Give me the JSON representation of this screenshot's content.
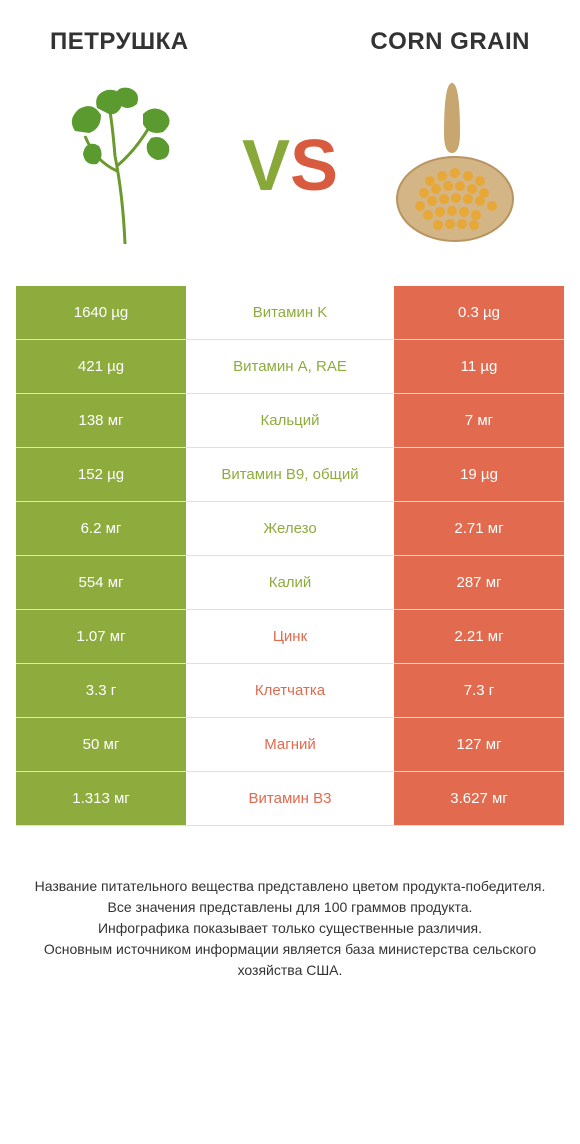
{
  "left_title": "ПЕТРУШКА",
  "right_title": "CORN GRAIN",
  "vs_v": "V",
  "vs_s": "S",
  "colors": {
    "green": "#8eac3e",
    "orange": "#e16a4f"
  },
  "rows": [
    {
      "left": "1640 µg",
      "label": "Витамин K",
      "right": "0.3 µg",
      "winner": "left"
    },
    {
      "left": "421 µg",
      "label": "Витамин A, RAE",
      "right": "11 µg",
      "winner": "left"
    },
    {
      "left": "138 мг",
      "label": "Кальций",
      "right": "7 мг",
      "winner": "left"
    },
    {
      "left": "152 µg",
      "label": "Витамин B9, общий",
      "right": "19 µg",
      "winner": "left"
    },
    {
      "left": "6.2 мг",
      "label": "Железо",
      "right": "2.71 мг",
      "winner": "left"
    },
    {
      "left": "554 мг",
      "label": "Калий",
      "right": "287 мг",
      "winner": "left"
    },
    {
      "left": "1.07 мг",
      "label": "Цинк",
      "right": "2.21 мг",
      "winner": "right"
    },
    {
      "left": "3.3 г",
      "label": "Клетчатка",
      "right": "7.3 г",
      "winner": "right"
    },
    {
      "left": "50 мг",
      "label": "Магний",
      "right": "127 мг",
      "winner": "right"
    },
    {
      "left": "1.313 мг",
      "label": "Витамин B3",
      "right": "3.627 мг",
      "winner": "right"
    }
  ],
  "footer_lines": [
    "Название питательного вещества представлено цветом продукта-победителя.",
    "Все значения представлены для 100 граммов продукта.",
    "Инфографика показывает только существенные различия.",
    "Основным источником информации является база министерства сельского хозяйства США."
  ]
}
